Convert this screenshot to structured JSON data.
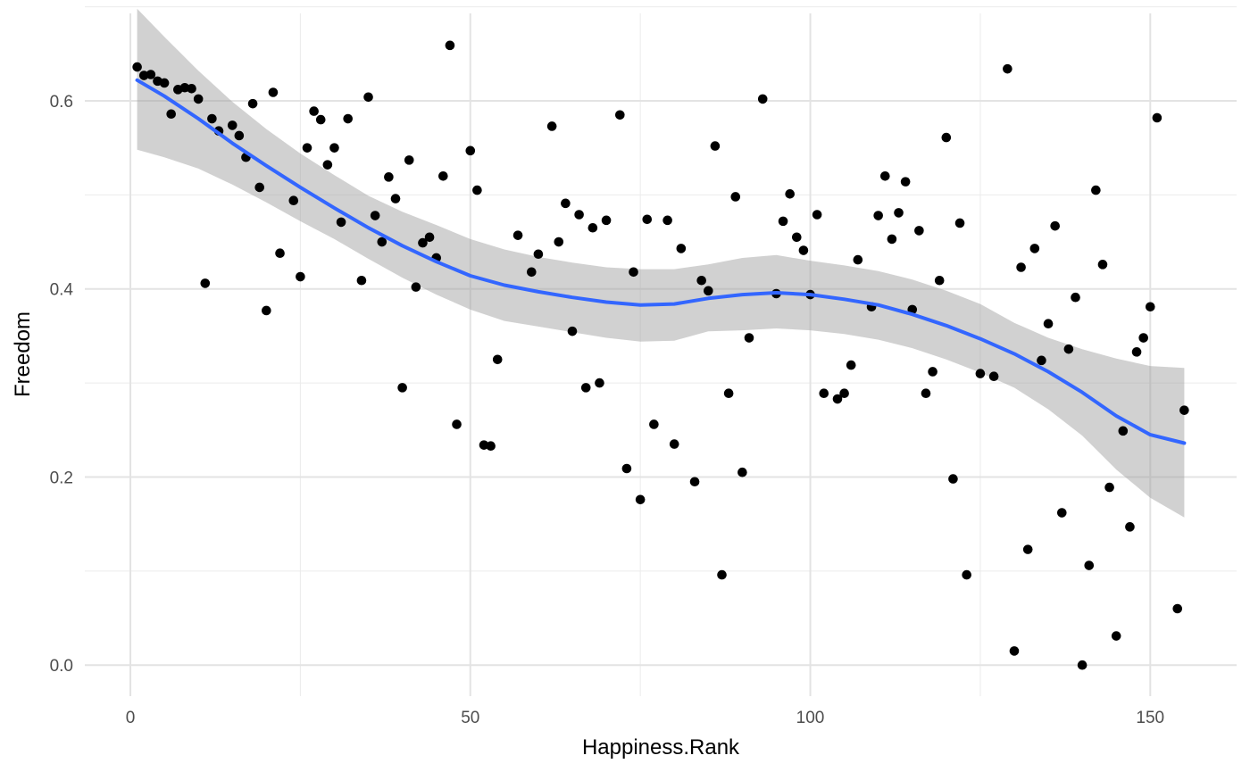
{
  "chart_data": {
    "type": "scatter",
    "xlabel": "Happiness.Rank",
    "ylabel": "Freedom",
    "xlim": [
      -6.7,
      162.7
    ],
    "ylim": [
      -0.033,
      0.693
    ],
    "x_ticks": [
      0,
      50,
      100,
      150
    ],
    "x_tick_labels": [
      "0",
      "50",
      "100",
      "150"
    ],
    "y_ticks": [
      0.0,
      0.2,
      0.4,
      0.6
    ],
    "y_tick_labels": [
      "0.0",
      "0.2",
      "0.4",
      "0.6"
    ],
    "grid": true,
    "legend": "none",
    "points": [
      [
        1,
        0.636
      ],
      [
        2,
        0.627
      ],
      [
        3,
        0.628
      ],
      [
        4,
        0.621
      ],
      [
        5,
        0.619
      ],
      [
        6,
        0.586
      ],
      [
        7,
        0.612
      ],
      [
        8,
        0.614
      ],
      [
        9,
        0.613
      ],
      [
        10,
        0.602
      ],
      [
        11,
        0.406
      ],
      [
        12,
        0.581
      ],
      [
        13,
        0.568
      ],
      [
        15,
        0.574
      ],
      [
        16,
        0.563
      ],
      [
        17,
        0.54
      ],
      [
        18,
        0.597
      ],
      [
        19,
        0.508
      ],
      [
        20,
        0.377
      ],
      [
        21,
        0.609
      ],
      [
        22,
        0.438
      ],
      [
        24,
        0.494
      ],
      [
        25,
        0.413
      ],
      [
        26,
        0.55
      ],
      [
        27,
        0.589
      ],
      [
        28,
        0.58
      ],
      [
        29,
        0.532
      ],
      [
        30,
        0.55
      ],
      [
        31,
        0.471
      ],
      [
        32,
        0.581
      ],
      [
        34,
        0.409
      ],
      [
        35,
        0.604
      ],
      [
        36,
        0.478
      ],
      [
        37,
        0.45
      ],
      [
        38,
        0.519
      ],
      [
        39,
        0.496
      ],
      [
        40,
        0.295
      ],
      [
        41,
        0.537
      ],
      [
        42,
        0.402
      ],
      [
        43,
        0.449
      ],
      [
        44,
        0.455
      ],
      [
        45,
        0.433
      ],
      [
        46,
        0.52
      ],
      [
        47,
        0.659
      ],
      [
        48,
        0.256
      ],
      [
        50,
        0.547
      ],
      [
        51,
        0.505
      ],
      [
        52,
        0.234
      ],
      [
        53,
        0.233
      ],
      [
        54,
        0.325
      ],
      [
        57,
        0.457
      ],
      [
        59,
        0.418
      ],
      [
        60,
        0.437
      ],
      [
        62,
        0.573
      ],
      [
        63,
        0.45
      ],
      [
        64,
        0.491
      ],
      [
        65,
        0.355
      ],
      [
        66,
        0.479
      ],
      [
        67,
        0.295
      ],
      [
        68,
        0.465
      ],
      [
        69,
        0.3
      ],
      [
        70,
        0.473
      ],
      [
        72,
        0.585
      ],
      [
        73,
        0.209
      ],
      [
        74,
        0.418
      ],
      [
        75,
        0.176
      ],
      [
        76,
        0.474
      ],
      [
        77,
        0.256
      ],
      [
        79,
        0.473
      ],
      [
        80,
        0.235
      ],
      [
        81,
        0.443
      ],
      [
        83,
        0.195
      ],
      [
        84,
        0.409
      ],
      [
        85,
        0.398
      ],
      [
        86,
        0.552
      ],
      [
        87,
        0.096
      ],
      [
        88,
        0.289
      ],
      [
        89,
        0.498
      ],
      [
        90,
        0.205
      ],
      [
        91,
        0.348
      ],
      [
        93,
        0.602
      ],
      [
        95,
        0.395
      ],
      [
        96,
        0.472
      ],
      [
        97,
        0.501
      ],
      [
        98,
        0.455
      ],
      [
        99,
        0.441
      ],
      [
        100,
        0.394
      ],
      [
        101,
        0.479
      ],
      [
        102,
        0.289
      ],
      [
        104,
        0.283
      ],
      [
        105,
        0.289
      ],
      [
        106,
        0.319
      ],
      [
        107,
        0.431
      ],
      [
        109,
        0.381
      ],
      [
        110,
        0.478
      ],
      [
        111,
        0.52
      ],
      [
        112,
        0.453
      ],
      [
        113,
        0.481
      ],
      [
        114,
        0.514
      ],
      [
        115,
        0.378
      ],
      [
        116,
        0.462
      ],
      [
        117,
        0.289
      ],
      [
        118,
        0.312
      ],
      [
        119,
        0.409
      ],
      [
        120,
        0.561
      ],
      [
        121,
        0.198
      ],
      [
        122,
        0.47
      ],
      [
        123,
        0.096
      ],
      [
        125,
        0.31
      ],
      [
        127,
        0.307
      ],
      [
        129,
        0.634
      ],
      [
        130,
        0.015
      ],
      [
        131,
        0.423
      ],
      [
        132,
        0.123
      ],
      [
        133,
        0.443
      ],
      [
        134,
        0.324
      ],
      [
        135,
        0.363
      ],
      [
        136,
        0.467
      ],
      [
        137,
        0.162
      ],
      [
        138,
        0.336
      ],
      [
        139,
        0.391
      ],
      [
        140,
        0.0
      ],
      [
        141,
        0.106
      ],
      [
        142,
        0.505
      ],
      [
        143,
        0.426
      ],
      [
        144,
        0.189
      ],
      [
        145,
        0.031
      ],
      [
        146,
        0.249
      ],
      [
        147,
        0.147
      ],
      [
        148,
        0.333
      ],
      [
        149,
        0.348
      ],
      [
        150,
        0.381
      ],
      [
        151,
        0.582
      ],
      [
        154,
        0.06
      ],
      [
        155,
        0.271
      ]
    ],
    "smooth_line": {
      "method": "loess",
      "color": "#3366ff",
      "points": [
        [
          1,
          0.622
        ],
        [
          5,
          0.605
        ],
        [
          10,
          0.581
        ],
        [
          15,
          0.555
        ],
        [
          20,
          0.531
        ],
        [
          25,
          0.508
        ],
        [
          30,
          0.486
        ],
        [
          35,
          0.465
        ],
        [
          40,
          0.446
        ],
        [
          45,
          0.429
        ],
        [
          50,
          0.414
        ],
        [
          55,
          0.404
        ],
        [
          60,
          0.397
        ],
        [
          65,
          0.391
        ],
        [
          70,
          0.386
        ],
        [
          75,
          0.383
        ],
        [
          80,
          0.384
        ],
        [
          85,
          0.39
        ],
        [
          90,
          0.394
        ],
        [
          95,
          0.396
        ],
        [
          100,
          0.394
        ],
        [
          105,
          0.389
        ],
        [
          110,
          0.383
        ],
        [
          115,
          0.373
        ],
        [
          120,
          0.361
        ],
        [
          125,
          0.347
        ],
        [
          130,
          0.331
        ],
        [
          135,
          0.312
        ],
        [
          140,
          0.29
        ],
        [
          145,
          0.265
        ],
        [
          150,
          0.245
        ],
        [
          155,
          0.236
        ]
      ],
      "ci_upper": [
        [
          1,
          0.698
        ],
        [
          5,
          0.668
        ],
        [
          10,
          0.632
        ],
        [
          15,
          0.599
        ],
        [
          20,
          0.57
        ],
        [
          25,
          0.544
        ],
        [
          30,
          0.521
        ],
        [
          35,
          0.499
        ],
        [
          40,
          0.482
        ],
        [
          45,
          0.468
        ],
        [
          50,
          0.453
        ],
        [
          55,
          0.442
        ],
        [
          60,
          0.434
        ],
        [
          65,
          0.428
        ],
        [
          70,
          0.423
        ],
        [
          75,
          0.421
        ],
        [
          80,
          0.421
        ],
        [
          85,
          0.426
        ],
        [
          90,
          0.433
        ],
        [
          95,
          0.436
        ],
        [
          100,
          0.43
        ],
        [
          105,
          0.425
        ],
        [
          110,
          0.419
        ],
        [
          115,
          0.41
        ],
        [
          120,
          0.398
        ],
        [
          125,
          0.384
        ],
        [
          130,
          0.364
        ],
        [
          135,
          0.348
        ],
        [
          140,
          0.336
        ],
        [
          145,
          0.326
        ],
        [
          150,
          0.318
        ],
        [
          155,
          0.316
        ]
      ],
      "ci_lower": [
        [
          1,
          0.548
        ],
        [
          5,
          0.54
        ],
        [
          10,
          0.528
        ],
        [
          15,
          0.511
        ],
        [
          20,
          0.492
        ],
        [
          25,
          0.472
        ],
        [
          30,
          0.453
        ],
        [
          35,
          0.432
        ],
        [
          40,
          0.412
        ],
        [
          45,
          0.394
        ],
        [
          50,
          0.378
        ],
        [
          55,
          0.366
        ],
        [
          60,
          0.36
        ],
        [
          65,
          0.354
        ],
        [
          70,
          0.348
        ],
        [
          75,
          0.344
        ],
        [
          80,
          0.345
        ],
        [
          85,
          0.355
        ],
        [
          90,
          0.356
        ],
        [
          95,
          0.358
        ],
        [
          100,
          0.356
        ],
        [
          105,
          0.352
        ],
        [
          110,
          0.346
        ],
        [
          115,
          0.337
        ],
        [
          120,
          0.325
        ],
        [
          125,
          0.311
        ],
        [
          130,
          0.295
        ],
        [
          135,
          0.272
        ],
        [
          140,
          0.244
        ],
        [
          145,
          0.208
        ],
        [
          150,
          0.178
        ],
        [
          155,
          0.157
        ]
      ],
      "ci_color": "#999999"
    }
  }
}
